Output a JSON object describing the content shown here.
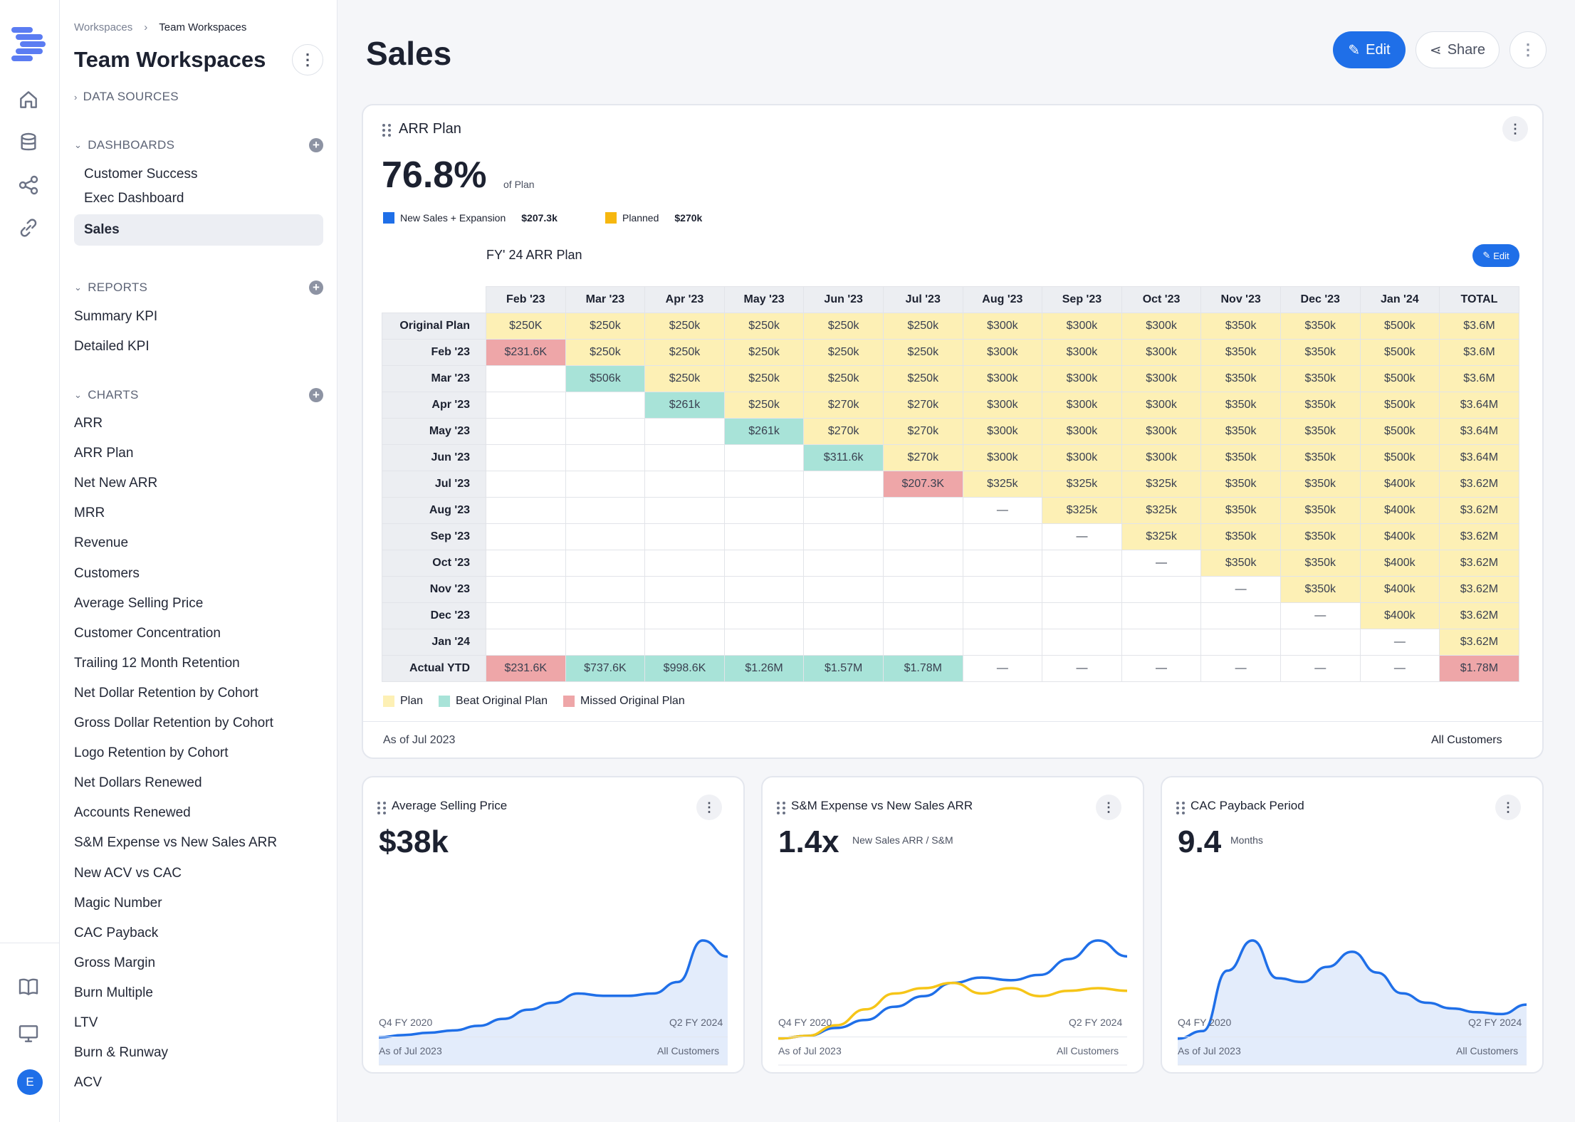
{
  "app": {
    "avatar_letter": "E"
  },
  "sidebar": {
    "breadcrumb": [
      "Workspaces",
      "Team Workspaces"
    ],
    "title": "Team Workspaces",
    "data_sources_label": "DATA SOURCES",
    "dashboards_label": "DASHBOARDS",
    "dashboards": [
      "Customer Success",
      "Exec Dashboard",
      "Sales"
    ],
    "reports_label": "REPORTS",
    "reports": [
      "Summary KPI",
      "Detailed KPI"
    ],
    "charts_label": "CHARTS",
    "charts": [
      "ARR",
      "ARR Plan",
      "Net New ARR",
      "MRR",
      "Revenue",
      "Customers",
      "Average Selling Price",
      "Customer Concentration",
      "Trailing 12 Month Retention",
      "Net Dollar Retention by Cohort",
      "Gross Dollar Retention by Cohort",
      "Logo Retention by Cohort",
      "Net Dollars Renewed",
      "Accounts Renewed",
      "S&M Expense vs New Sales ARR",
      "New ACV vs CAC",
      "Magic Number",
      "CAC Payback",
      "Gross Margin",
      "Burn Multiple",
      "LTV",
      "Burn & Runway",
      "ACV"
    ]
  },
  "header": {
    "title": "Sales",
    "edit_label": "Edit",
    "share_label": "Share"
  },
  "arr_plan": {
    "title": "ARR Plan",
    "percent": "76.8%",
    "percent_caption": "of Plan",
    "legend": [
      {
        "label": "New Sales + Expansion",
        "value": "$207.3k",
        "color": "#1f6fe8"
      },
      {
        "label": "Planned",
        "value": "$270k",
        "color": "#f6b70f"
      }
    ],
    "table_title": "FY' 24 ARR Plan",
    "edit_label": "Edit",
    "columns": [
      "Feb '23",
      "Mar '23",
      "Apr '23",
      "May '23",
      "Jun '23",
      "Jul '23",
      "Aug '23",
      "Sep '23",
      "Oct '23",
      "Nov '23",
      "Dec '23",
      "Jan '24",
      "TOTAL"
    ],
    "rows": [
      {
        "label": "Original Plan",
        "cells": [
          [
            "$250K",
            "y"
          ],
          [
            "$250k",
            "y"
          ],
          [
            "$250k",
            "y"
          ],
          [
            "$250k",
            "y"
          ],
          [
            "$250k",
            "y"
          ],
          [
            "$250k",
            "y"
          ],
          [
            "$300k",
            "y"
          ],
          [
            "$300k",
            "y"
          ],
          [
            "$300k",
            "y"
          ],
          [
            "$350k",
            "y"
          ],
          [
            "$350k",
            "y"
          ],
          [
            "$500k",
            "y"
          ],
          [
            "$3.6M",
            "y"
          ]
        ]
      },
      {
        "label": "Feb '23",
        "cells": [
          [
            "$231.6K",
            "r"
          ],
          [
            "$250k",
            "y"
          ],
          [
            "$250k",
            "y"
          ],
          [
            "$250k",
            "y"
          ],
          [
            "$250k",
            "y"
          ],
          [
            "$250k",
            "y"
          ],
          [
            "$300k",
            "y"
          ],
          [
            "$300k",
            "y"
          ],
          [
            "$300k",
            "y"
          ],
          [
            "$350k",
            "y"
          ],
          [
            "$350k",
            "y"
          ],
          [
            "$500k",
            "y"
          ],
          [
            "$3.6M",
            "y"
          ]
        ]
      },
      {
        "label": "Mar '23",
        "cells": [
          [
            "",
            "w"
          ],
          [
            "$506k",
            "g"
          ],
          [
            "$250k",
            "y"
          ],
          [
            "$250k",
            "y"
          ],
          [
            "$250k",
            "y"
          ],
          [
            "$250k",
            "y"
          ],
          [
            "$300k",
            "y"
          ],
          [
            "$300k",
            "y"
          ],
          [
            "$300k",
            "y"
          ],
          [
            "$350k",
            "y"
          ],
          [
            "$350k",
            "y"
          ],
          [
            "$500k",
            "y"
          ],
          [
            "$3.6M",
            "y"
          ]
        ]
      },
      {
        "label": "Apr '23",
        "cells": [
          [
            "",
            "w"
          ],
          [
            "",
            "w"
          ],
          [
            "$261k",
            "g"
          ],
          [
            "$250k",
            "y"
          ],
          [
            "$270k",
            "y"
          ],
          [
            "$270k",
            "y"
          ],
          [
            "$300k",
            "y"
          ],
          [
            "$300k",
            "y"
          ],
          [
            "$300k",
            "y"
          ],
          [
            "$350k",
            "y"
          ],
          [
            "$350k",
            "y"
          ],
          [
            "$500k",
            "y"
          ],
          [
            "$3.64M",
            "y"
          ]
        ]
      },
      {
        "label": "May '23",
        "cells": [
          [
            "",
            "w"
          ],
          [
            "",
            "w"
          ],
          [
            "",
            "w"
          ],
          [
            "$261k",
            "g"
          ],
          [
            "$270k",
            "y"
          ],
          [
            "$270k",
            "y"
          ],
          [
            "$300k",
            "y"
          ],
          [
            "$300k",
            "y"
          ],
          [
            "$300k",
            "y"
          ],
          [
            "$350k",
            "y"
          ],
          [
            "$350k",
            "y"
          ],
          [
            "$500k",
            "y"
          ],
          [
            "$3.64M",
            "y"
          ]
        ]
      },
      {
        "label": "Jun '23",
        "cells": [
          [
            "",
            "w"
          ],
          [
            "",
            "w"
          ],
          [
            "",
            "w"
          ],
          [
            "",
            "w"
          ],
          [
            "$311.6k",
            "g"
          ],
          [
            "$270k",
            "y"
          ],
          [
            "$300k",
            "y"
          ],
          [
            "$300k",
            "y"
          ],
          [
            "$300k",
            "y"
          ],
          [
            "$350k",
            "y"
          ],
          [
            "$350k",
            "y"
          ],
          [
            "$500k",
            "y"
          ],
          [
            "$3.64M",
            "y"
          ]
        ]
      },
      {
        "label": "Jul '23",
        "cells": [
          [
            "",
            "w"
          ],
          [
            "",
            "w"
          ],
          [
            "",
            "w"
          ],
          [
            "",
            "w"
          ],
          [
            "",
            "w"
          ],
          [
            "$207.3K",
            "r"
          ],
          [
            "$325k",
            "y"
          ],
          [
            "$325k",
            "y"
          ],
          [
            "$325k",
            "y"
          ],
          [
            "$350k",
            "y"
          ],
          [
            "$350k",
            "y"
          ],
          [
            "$400k",
            "y"
          ],
          [
            "$3.62M",
            "y"
          ]
        ]
      },
      {
        "label": "Aug '23",
        "cells": [
          [
            "",
            "w"
          ],
          [
            "",
            "w"
          ],
          [
            "",
            "w"
          ],
          [
            "",
            "w"
          ],
          [
            "",
            "w"
          ],
          [
            "",
            "w"
          ],
          [
            "—",
            "d"
          ],
          [
            "$325k",
            "y"
          ],
          [
            "$325k",
            "y"
          ],
          [
            "$350k",
            "y"
          ],
          [
            "$350k",
            "y"
          ],
          [
            "$400k",
            "y"
          ],
          [
            "$3.62M",
            "y"
          ]
        ]
      },
      {
        "label": "Sep '23",
        "cells": [
          [
            "",
            "w"
          ],
          [
            "",
            "w"
          ],
          [
            "",
            "w"
          ],
          [
            "",
            "w"
          ],
          [
            "",
            "w"
          ],
          [
            "",
            "w"
          ],
          [
            "",
            "w"
          ],
          [
            "—",
            "d"
          ],
          [
            "$325k",
            "y"
          ],
          [
            "$350k",
            "y"
          ],
          [
            "$350k",
            "y"
          ],
          [
            "$400k",
            "y"
          ],
          [
            "$3.62M",
            "y"
          ]
        ]
      },
      {
        "label": "Oct '23",
        "cells": [
          [
            "",
            "w"
          ],
          [
            "",
            "w"
          ],
          [
            "",
            "w"
          ],
          [
            "",
            "w"
          ],
          [
            "",
            "w"
          ],
          [
            "",
            "w"
          ],
          [
            "",
            "w"
          ],
          [
            "",
            "w"
          ],
          [
            "—",
            "d"
          ],
          [
            "$350k",
            "y"
          ],
          [
            "$350k",
            "y"
          ],
          [
            "$400k",
            "y"
          ],
          [
            "$3.62M",
            "y"
          ]
        ]
      },
      {
        "label": "Nov '23",
        "cells": [
          [
            "",
            "w"
          ],
          [
            "",
            "w"
          ],
          [
            "",
            "w"
          ],
          [
            "",
            "w"
          ],
          [
            "",
            "w"
          ],
          [
            "",
            "w"
          ],
          [
            "",
            "w"
          ],
          [
            "",
            "w"
          ],
          [
            "",
            "w"
          ],
          [
            "—",
            "d"
          ],
          [
            "$350k",
            "y"
          ],
          [
            "$400k",
            "y"
          ],
          [
            "$3.62M",
            "y"
          ]
        ]
      },
      {
        "label": "Dec '23",
        "cells": [
          [
            "",
            "w"
          ],
          [
            "",
            "w"
          ],
          [
            "",
            "w"
          ],
          [
            "",
            "w"
          ],
          [
            "",
            "w"
          ],
          [
            "",
            "w"
          ],
          [
            "",
            "w"
          ],
          [
            "",
            "w"
          ],
          [
            "",
            "w"
          ],
          [
            "",
            "w"
          ],
          [
            "—",
            "d"
          ],
          [
            "$400k",
            "y"
          ],
          [
            "$3.62M",
            "y"
          ]
        ]
      },
      {
        "label": "Jan '24",
        "cells": [
          [
            "",
            "w"
          ],
          [
            "",
            "w"
          ],
          [
            "",
            "w"
          ],
          [
            "",
            "w"
          ],
          [
            "",
            "w"
          ],
          [
            "",
            "w"
          ],
          [
            "",
            "w"
          ],
          [
            "",
            "w"
          ],
          [
            "",
            "w"
          ],
          [
            "",
            "w"
          ],
          [
            "",
            "w"
          ],
          [
            "—",
            "d"
          ],
          [
            "$3.62M",
            "y"
          ]
        ]
      },
      {
        "label": "Actual YTD",
        "cells": [
          [
            "$231.6K",
            "r"
          ],
          [
            "$737.6K",
            "g"
          ],
          [
            "$998.6K",
            "g"
          ],
          [
            "$1.26M",
            "g"
          ],
          [
            "$1.57M",
            "g"
          ],
          [
            "$1.78M",
            "g"
          ],
          [
            "—",
            "d"
          ],
          [
            "—",
            "d"
          ],
          [
            "—",
            "d"
          ],
          [
            "—",
            "d"
          ],
          [
            "—",
            "d"
          ],
          [
            "—",
            "d"
          ],
          [
            "$1.78M",
            "r"
          ]
        ]
      }
    ],
    "bottom_legend": [
      {
        "label": "Plan",
        "color": "#fdf0b5"
      },
      {
        "label": "Beat Original Plan",
        "color": "#a8e3d8"
      },
      {
        "label": "Missed Original Plan",
        "color": "#eea6a8"
      }
    ],
    "as_of": "As of Jul 2023",
    "filter": "All Customers"
  },
  "mini_cards": [
    {
      "title": "Average Selling Price",
      "value": "$38k",
      "caption": "",
      "x_start": "Q4 FY 2020",
      "x_end": "Q2 FY 2024",
      "as_of": "As of Jul 2023",
      "filter": "All Customers"
    },
    {
      "title": "S&M Expense vs New Sales ARR",
      "value": "1.4x",
      "caption": "New Sales ARR / S&M",
      "x_start": "Q4 FY 2020",
      "x_end": "Q2 FY 2024",
      "as_of": "As of Jul 2023",
      "filter": "All Customers"
    },
    {
      "title": "CAC Payback Period",
      "value": "9.4",
      "caption": "Months",
      "x_start": "Q4 FY 2020",
      "x_end": "Q2 FY 2024",
      "as_of": "As of Jul 2023",
      "filter": "All Customers"
    }
  ],
  "chart_data": [
    {
      "type": "area",
      "x_range": [
        "Q4 FY 2020",
        "Q2 FY 2024"
      ],
      "series": [
        {
          "values": [
            12,
            13,
            14,
            15,
            17,
            20,
            24,
            27,
            31,
            30,
            30,
            31,
            36,
            54,
            47
          ],
          "color": "#1f6fe8"
        }
      ]
    },
    {
      "type": "line",
      "x_range": [
        "Q4 FY 2020",
        "Q2 FY 2024"
      ],
      "series": [
        {
          "values": [
            10,
            11,
            14,
            17,
            22,
            26,
            31,
            33,
            32,
            34,
            40,
            47,
            41
          ],
          "color": "#1f6fe8"
        },
        {
          "values": [
            10,
            11,
            15,
            21,
            27,
            29,
            31,
            27,
            29,
            26,
            28,
            29,
            28
          ],
          "color": "#f6c518"
        }
      ]
    },
    {
      "type": "area",
      "x_range": [
        "Q4 FY 2020",
        "Q2 FY 2024"
      ],
      "series": [
        {
          "values": [
            14,
            18,
            50,
            66,
            46,
            44,
            52,
            60,
            49,
            38,
            33,
            30,
            28,
            27,
            32
          ],
          "color": "#1f6fe8"
        }
      ]
    }
  ]
}
